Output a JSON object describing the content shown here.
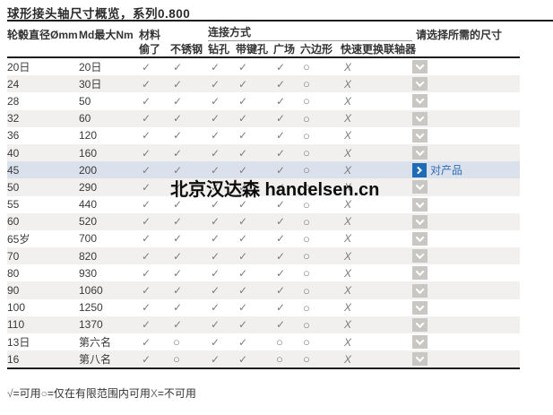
{
  "title": "球形接头轴尺寸概览，系列0.800",
  "watermark": "北京汉达森 handelsen.cn",
  "header": {
    "hub_diameter": "轮毂直径Ømm",
    "md_max": "Md最大Nm",
    "material_group": "材料",
    "connection_group": "连接方式",
    "select_size": "请选择所需的尺寸",
    "subcolumns": [
      "偷了",
      "不锈钢",
      "钻孔",
      "带键孔",
      "广场",
      "六边形",
      "快速更换联轴器"
    ]
  },
  "symbols": {
    "available": "✓",
    "limited": "○",
    "unavailable": "X"
  },
  "selected_row_action": "对产品",
  "legend": [
    {
      "symbol": "√",
      "text": "=可用"
    },
    {
      "symbol": "○",
      "text": "=仅在有限范围内可用"
    },
    {
      "symbol": "X",
      "text": "=不可用"
    }
  ],
  "rows": [
    {
      "hub": "20日",
      "md": "20日",
      "marks": [
        "available",
        "available",
        "available",
        "available",
        "available",
        "limited",
        "unavailable"
      ],
      "selected": false
    },
    {
      "hub": "24",
      "md": "30日",
      "marks": [
        "available",
        "available",
        "available",
        "available",
        "available",
        "limited",
        "unavailable"
      ],
      "selected": false
    },
    {
      "hub": "28",
      "md": "50",
      "marks": [
        "available",
        "available",
        "available",
        "available",
        "available",
        "limited",
        "unavailable"
      ],
      "selected": false
    },
    {
      "hub": "32",
      "md": "60",
      "marks": [
        "available",
        "available",
        "available",
        "available",
        "available",
        "limited",
        "unavailable"
      ],
      "selected": false
    },
    {
      "hub": "36",
      "md": "120",
      "marks": [
        "available",
        "available",
        "available",
        "available",
        "available",
        "limited",
        "unavailable"
      ],
      "selected": false
    },
    {
      "hub": "40",
      "md": "160",
      "marks": [
        "available",
        "available",
        "available",
        "available",
        "available",
        "limited",
        "unavailable"
      ],
      "selected": false
    },
    {
      "hub": "45",
      "md": "200",
      "marks": [
        "available",
        "available",
        "available",
        "available",
        "available",
        "limited",
        "unavailable"
      ],
      "selected": true
    },
    {
      "hub": "50",
      "md": "290",
      "marks": [
        "available",
        "available",
        "available",
        "available",
        "available",
        "limited",
        "unavailable"
      ],
      "selected": false
    },
    {
      "hub": "55",
      "md": "440",
      "marks": [
        "available",
        "available",
        "available",
        "available",
        "available",
        "limited",
        "unavailable"
      ],
      "selected": false
    },
    {
      "hub": "60",
      "md": "520",
      "marks": [
        "available",
        "available",
        "available",
        "available",
        "available",
        "limited",
        "unavailable"
      ],
      "selected": false
    },
    {
      "hub": "65岁",
      "md": "700",
      "marks": [
        "available",
        "available",
        "available",
        "available",
        "available",
        "limited",
        "unavailable"
      ],
      "selected": false
    },
    {
      "hub": "70",
      "md": "820",
      "marks": [
        "available",
        "available",
        "available",
        "available",
        "available",
        "limited",
        "unavailable"
      ],
      "selected": false
    },
    {
      "hub": "80",
      "md": "930",
      "marks": [
        "available",
        "available",
        "available",
        "available",
        "available",
        "limited",
        "unavailable"
      ],
      "selected": false
    },
    {
      "hub": "90",
      "md": "1060",
      "marks": [
        "available",
        "available",
        "available",
        "available",
        "available",
        "limited",
        "unavailable"
      ],
      "selected": false
    },
    {
      "hub": "100",
      "md": "1250",
      "marks": [
        "available",
        "available",
        "available",
        "available",
        "available",
        "limited",
        "unavailable"
      ],
      "selected": false
    },
    {
      "hub": "110",
      "md": "1370",
      "marks": [
        "available",
        "available",
        "available",
        "available",
        "available",
        "limited",
        "unavailable"
      ],
      "selected": false
    },
    {
      "hub": "13日",
      "md": "第六名",
      "marks": [
        "available",
        "limited",
        "available",
        "available",
        "limited",
        "limited",
        "unavailable"
      ],
      "selected": false
    },
    {
      "hub": "16",
      "md": "第八名",
      "marks": [
        "available",
        "limited",
        "available",
        "available",
        "limited",
        "limited",
        "unavailable"
      ],
      "selected": false
    }
  ],
  "colors": {
    "accent_blue": "#1e6cb5",
    "link_blue": "#2e6db6",
    "row_alt": "#f1f0ee",
    "row_selected": "#dbe1ec",
    "mark_gray": "#7d7d7d",
    "button_gray": "#c9c7c3",
    "border_dark": "#1c1c1c"
  }
}
